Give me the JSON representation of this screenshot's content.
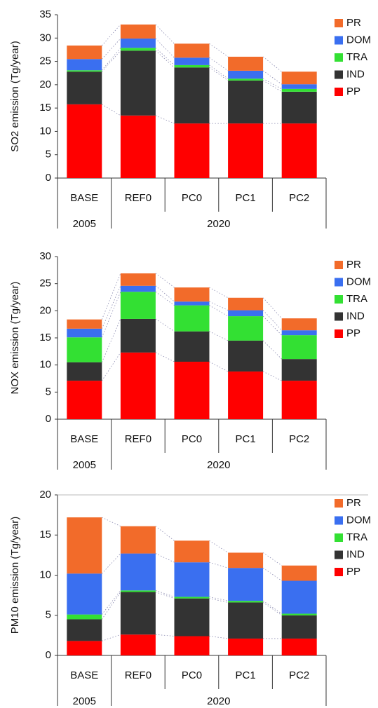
{
  "chart_data": [
    {
      "type": "stacked_bar",
      "y_label": "SO2 emission (Tg/year)",
      "categories": [
        "BASE",
        "REF0",
        "PC0",
        "PC1",
        "PC2"
      ],
      "groups": [
        "2005",
        "2020"
      ],
      "ylim": [
        0,
        35
      ],
      "yticks": [
        0,
        5,
        10,
        15,
        20,
        25,
        30,
        35
      ],
      "series": [
        {
          "name": "PP",
          "color": "#ff0000",
          "values": [
            15.8,
            13.4,
            11.7,
            11.7,
            11.7
          ]
        },
        {
          "name": "IND",
          "color": "#333333",
          "values": [
            7.0,
            13.9,
            12.0,
            9.2,
            6.8
          ]
        },
        {
          "name": "TRA",
          "color": "#33e033",
          "values": [
            0.3,
            0.6,
            0.5,
            0.4,
            0.6
          ]
        },
        {
          "name": "DOM",
          "color": "#3a6ff0",
          "values": [
            2.4,
            2.0,
            1.6,
            1.7,
            1.0
          ]
        },
        {
          "name": "PR",
          "color": "#f26b2a",
          "values": [
            2.9,
            3.0,
            3.0,
            3.0,
            2.7
          ]
        }
      ]
    },
    {
      "type": "stacked_bar",
      "y_label": "NOX emission (Tg/year)",
      "categories": [
        "BASE",
        "REF0",
        "PC0",
        "PC1",
        "PC2"
      ],
      "groups": [
        "2005",
        "2020"
      ],
      "ylim": [
        0,
        30
      ],
      "yticks": [
        0,
        5,
        10,
        15,
        20,
        25,
        30
      ],
      "series": [
        {
          "name": "PP",
          "color": "#ff0000",
          "values": [
            7.1,
            12.3,
            10.6,
            8.8,
            7.1
          ]
        },
        {
          "name": "IND",
          "color": "#333333",
          "values": [
            3.4,
            6.2,
            5.6,
            5.7,
            4.0
          ]
        },
        {
          "name": "TRA",
          "color": "#33e033",
          "values": [
            4.6,
            5.0,
            4.8,
            4.5,
            4.4
          ]
        },
        {
          "name": "DOM",
          "color": "#3a6ff0",
          "values": [
            1.6,
            1.1,
            0.7,
            1.1,
            0.9
          ]
        },
        {
          "name": "PR",
          "color": "#f26b2a",
          "values": [
            1.7,
            2.3,
            2.6,
            2.3,
            2.2
          ]
        }
      ]
    },
    {
      "type": "stacked_bar",
      "y_label": "PM10 emission (Tg/year)",
      "categories": [
        "BASE",
        "REF0",
        "PC0",
        "PC1",
        "PC2"
      ],
      "groups": [
        "2005",
        "2020"
      ],
      "ylim": [
        0,
        20
      ],
      "yticks": [
        0,
        5,
        10,
        15,
        20
      ],
      "series": [
        {
          "name": "PP",
          "color": "#ff0000",
          "values": [
            1.8,
            2.6,
            2.4,
            2.1,
            2.1
          ]
        },
        {
          "name": "IND",
          "color": "#333333",
          "values": [
            2.7,
            5.3,
            4.7,
            4.5,
            2.9
          ]
        },
        {
          "name": "TRA",
          "color": "#33e033",
          "values": [
            0.6,
            0.2,
            0.2,
            0.2,
            0.2
          ]
        },
        {
          "name": "DOM",
          "color": "#3a6ff0",
          "values": [
            5.1,
            4.6,
            4.3,
            4.1,
            4.1
          ]
        },
        {
          "name": "PR",
          "color": "#f26b2a",
          "values": [
            7.0,
            3.4,
            2.7,
            1.9,
            1.9
          ]
        }
      ]
    }
  ]
}
